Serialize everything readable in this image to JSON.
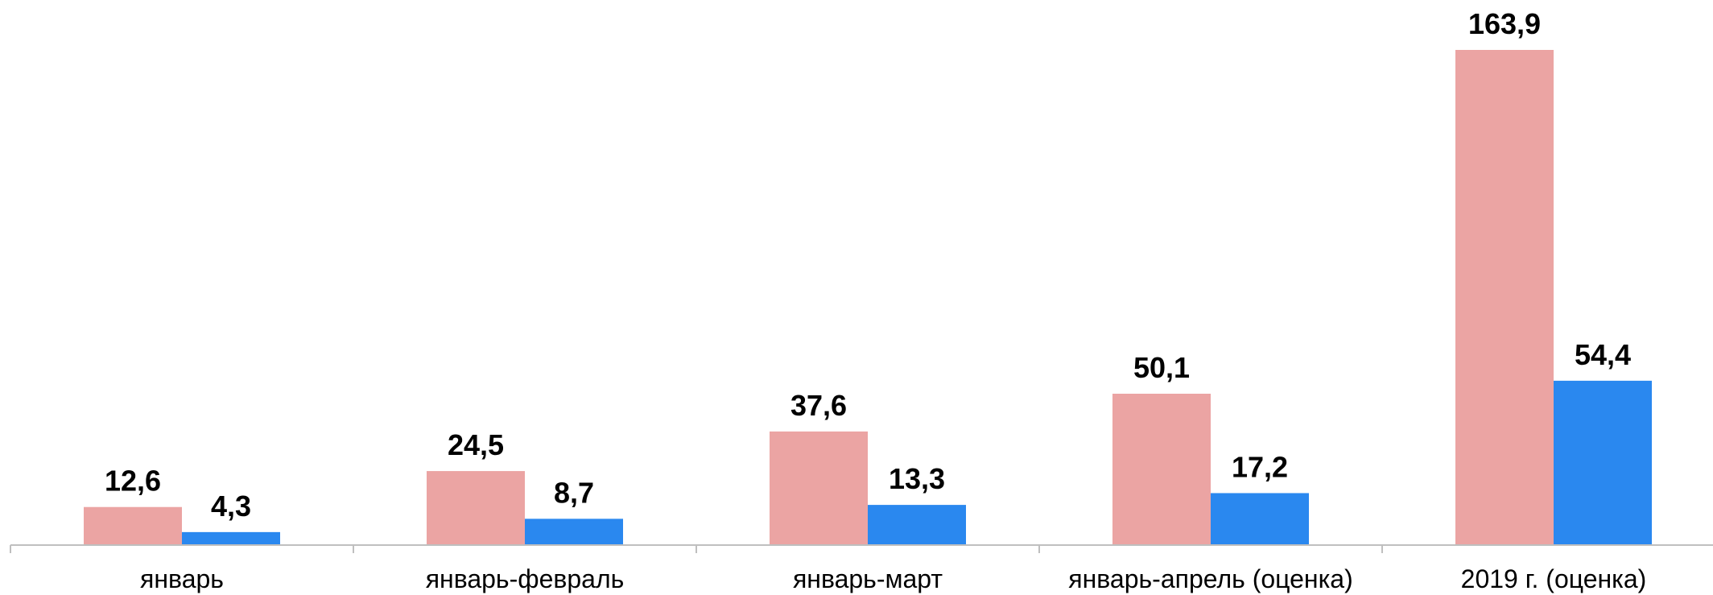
{
  "chart_data": {
    "type": "bar",
    "title": "",
    "xlabel": "",
    "ylabel": "",
    "categories": [
      "январь",
      "январь-февраль",
      "январь-март",
      "январь-апрель (оценка)",
      "2019 г. (оценка)"
    ],
    "series": [
      {
        "color": "#eba4a3",
        "values": [
          12.6,
          24.5,
          37.6,
          50.1,
          163.9
        ]
      },
      {
        "color": "#2a88ef",
        "values": [
          4.3,
          8.7,
          13.3,
          17.2,
          54.4
        ]
      }
    ],
    "value_labels": [
      [
        "12,6",
        "24,5",
        "37,6",
        "50,1",
        "163,9"
      ],
      [
        "4,3",
        "8,7",
        "13,3",
        "17,2",
        "54,4"
      ]
    ],
    "ylim": [
      0,
      165
    ],
    "grid": false,
    "legend": "none",
    "axis_color": "#bfbfbf"
  }
}
